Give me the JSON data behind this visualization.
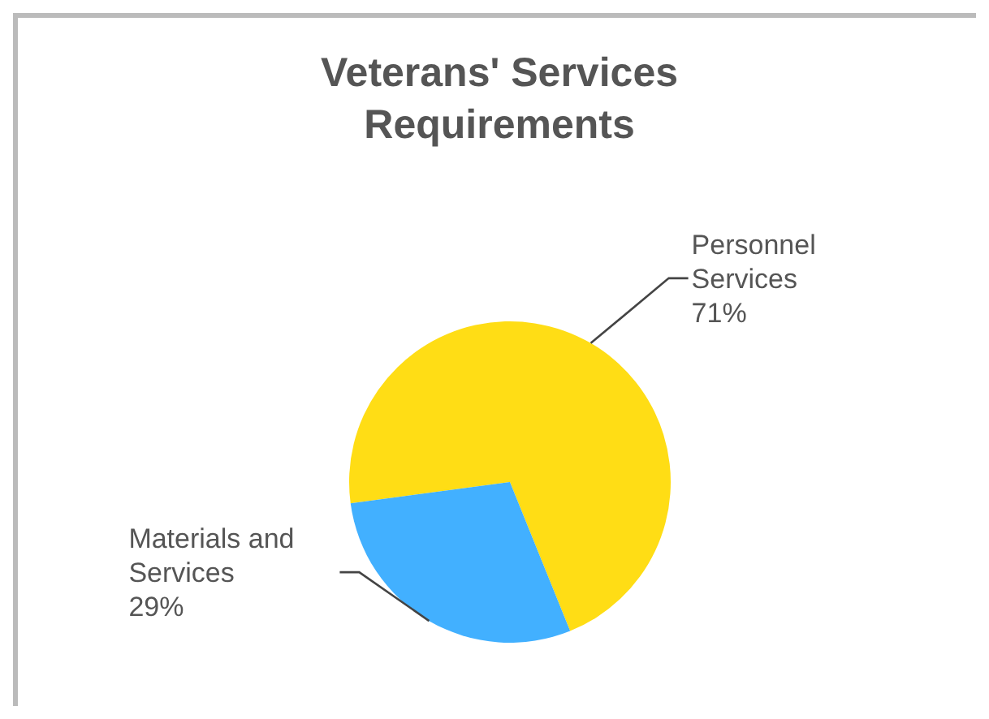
{
  "chart_data": {
    "type": "pie",
    "title": "Veterans' Services Requirements",
    "categories": [
      "Personnel Services",
      "Materials and Services"
    ],
    "values": [
      71,
      29
    ],
    "value_labels": [
      "71%",
      "29%"
    ],
    "colors": [
      "#ffdd15",
      "#42b0ff"
    ],
    "legend": false
  }
}
